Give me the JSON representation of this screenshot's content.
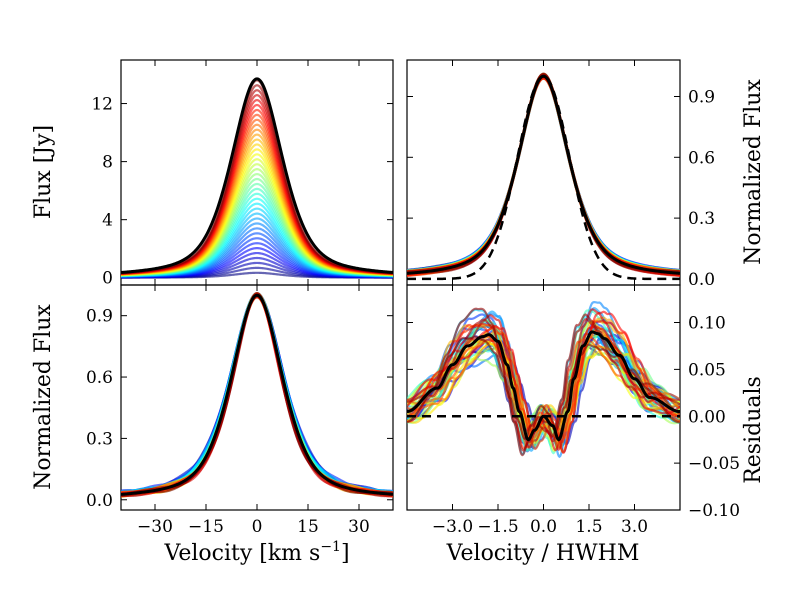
{
  "chart_data": [
    {
      "type": "line",
      "panel": "top-left",
      "xlabel": "",
      "ylabel": "Flux [Jy]",
      "xlim": [
        -40,
        40
      ],
      "ylim": [
        -0.5,
        15
      ],
      "xticks": [],
      "yticks": [
        0,
        4,
        8,
        12
      ],
      "ytick_labels": [
        "0",
        "4",
        "8",
        "12"
      ],
      "series": [
        {
          "role": "family",
          "colormap": "jet",
          "count": 40,
          "peak_values": [
            0.34,
            0.68,
            1.02,
            1.36,
            1.7,
            2.04,
            2.38,
            2.72,
            3.06,
            3.4,
            3.74,
            4.08,
            4.42,
            4.76,
            5.1,
            5.44,
            5.78,
            6.12,
            6.46,
            6.8,
            7.14,
            7.48,
            7.82,
            8.16,
            8.5,
            8.84,
            9.18,
            9.52,
            9.86,
            10.2,
            10.54,
            10.88,
            11.22,
            11.56,
            11.9,
            12.24,
            12.58,
            12.92,
            13.26,
            13.6
          ],
          "hwhm": 8.5,
          "shape": "lorentzian-like",
          "alpha": 0.6
        },
        {
          "role": "total",
          "color": "#000000",
          "peak": 13.7,
          "hwhm": 9.0,
          "x_center": 0
        }
      ]
    },
    {
      "type": "line",
      "panel": "top-right",
      "xlabel": "",
      "ylabel": "Normalized Flux",
      "ylabel_side": "right",
      "xlim": [
        -4.5,
        4.5
      ],
      "ylim": [
        -0.03,
        1.08
      ],
      "xticks": [],
      "yticks": [
        0.0,
        0.3,
        0.6,
        0.9
      ],
      "ytick_labels": [
        "0.0",
        "0.3",
        "0.6",
        "0.9"
      ],
      "series": [
        {
          "role": "family",
          "colormap": "jet",
          "count": 40,
          "peak": 1.0,
          "shape": "normalized-lorentzian-like",
          "alpha": 0.6
        },
        {
          "role": "total",
          "color": "#000000",
          "peak": 1.0
        },
        {
          "role": "gaussian-reference",
          "color": "#000000",
          "linestyle": "dashed",
          "peak": 1.0
        }
      ]
    },
    {
      "type": "line",
      "panel": "bottom-left",
      "xlabel": "Velocity [km s",
      "xlabel_sup": "−1",
      "xlabel_end": "]",
      "ylabel": "Normalized Flux",
      "xlim": [
        -40,
        40
      ],
      "ylim": [
        -0.05,
        1.05
      ],
      "xticks": [
        -30,
        -15,
        0,
        15,
        30
      ],
      "xtick_labels": [
        "−30",
        "−15",
        "0",
        "15",
        "30"
      ],
      "yticks": [
        0.0,
        0.3,
        0.6,
        0.9
      ],
      "ytick_labels": [
        "0.0",
        "0.3",
        "0.6",
        "0.9"
      ],
      "series": [
        {
          "role": "family",
          "colormap": "jet",
          "count": 40,
          "peak": 1.0,
          "alpha": 0.6
        },
        {
          "role": "total",
          "color": "#000000",
          "peak": 1.0
        }
      ]
    },
    {
      "type": "line",
      "panel": "bottom-right",
      "xlabel": "Velocity / HWHM",
      "ylabel": "Residuals",
      "ylabel_side": "right",
      "xlim": [
        -4.5,
        4.5
      ],
      "ylim": [
        -0.1,
        0.14
      ],
      "xticks": [
        -3.0,
        -1.5,
        0.0,
        1.5,
        3.0
      ],
      "xtick_labels": [
        "−3.0",
        "−1.5",
        "0.0",
        "1.5",
        "3.0"
      ],
      "yticks": [
        -0.1,
        -0.05,
        0.0,
        0.05,
        0.1
      ],
      "ytick_labels": [
        "−0.10",
        "−0.05",
        "0.00",
        "0.05",
        "0.10"
      ],
      "series": [
        {
          "role": "family",
          "colormap": "jet",
          "count": 40,
          "alpha": 0.6
        },
        {
          "role": "mean-residual",
          "color": "#000000",
          "x": [
            -4.5,
            -3.5,
            -3.0,
            -2.5,
            -2.0,
            -1.8,
            -1.5,
            -1.2,
            -1.0,
            -0.8,
            -0.5,
            -0.3,
            0.0,
            0.3,
            0.5,
            0.8,
            1.0,
            1.3,
            1.6,
            1.8,
            2.0,
            2.5,
            3.0,
            3.5,
            4.5
          ],
          "y": [
            0.005,
            0.03,
            0.055,
            0.075,
            0.085,
            0.087,
            0.08,
            0.055,
            0.03,
            0.005,
            -0.025,
            -0.015,
            0.0,
            -0.01,
            -0.025,
            0.005,
            0.04,
            0.075,
            0.09,
            0.088,
            0.083,
            0.065,
            0.04,
            0.02,
            0.005
          ]
        },
        {
          "role": "zero-line",
          "color": "#000000",
          "linestyle": "dashed",
          "y": 0.0
        }
      ]
    }
  ]
}
